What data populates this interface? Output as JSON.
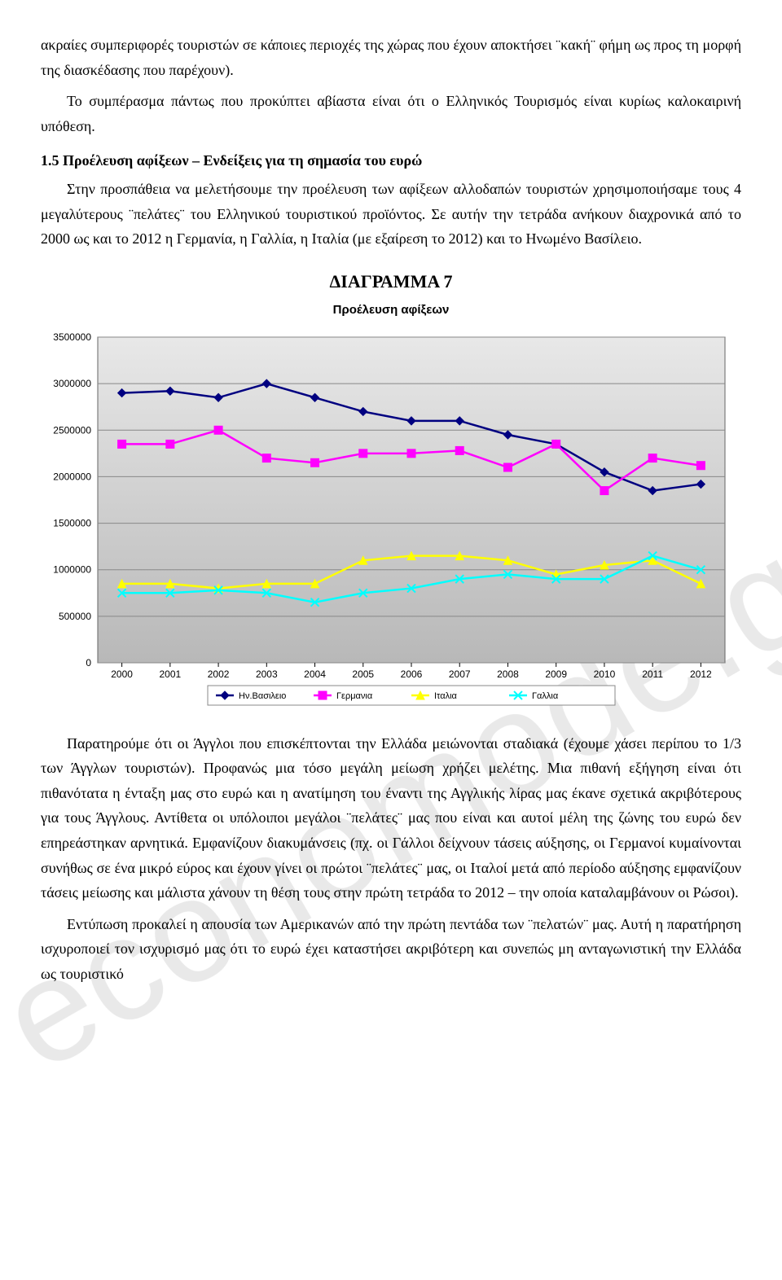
{
  "watermark": "economode.gr",
  "paragraphs": {
    "p1": "ακραίες συμπεριφορές τουριστών σε κάποιες περιοχές της χώρας που έχουν αποκτήσει ¨κακή¨ φήμη ως προς τη μορφή της διασκέδασης που παρέχουν).",
    "p2": "Το συμπέρασμα πάντως που προκύπτει αβίαστα είναι ότι ο Ελληνικός Τουρισμός είναι κυρίως καλοκαιρινή υπόθεση.",
    "section_head": "1.5 Προέλευση αφίξεων – Ενδείξεις για τη σημασία του ευρώ",
    "p3": "Στην προσπάθεια να μελετήσουμε την προέλευση των αφίξεων αλλοδαπών τουριστών χρησιμοποιήσαμε τους 4 μεγαλύτερους ¨πελάτες¨ του Ελληνικού τουριστικού προϊόντος. Σε αυτήν την τετράδα ανήκουν διαχρονικά από το 2000 ως και το 2012 η Γερμανία, η Γαλλία, η Ιταλία (με εξαίρεση το 2012) και το Ηνωμένο Βασίλειο.",
    "chart_title": "ΔΙΑΓΡΑΜΜΑ 7",
    "chart_subtitle": "Προέλευση αφίξεων",
    "p4": "Παρατηρούμε ότι οι Άγγλοι που επισκέπτονται την Ελλάδα μειώνονται σταδιακά (έχουμε χάσει περίπου το 1/3 των Άγγλων τουριστών). Προφανώς μια τόσο μεγάλη μείωση χρήζει μελέτης. Μια πιθανή εξήγηση είναι ότι πιθανότατα η ένταξη μας στο ευρώ και η ανατίμηση του έναντι της Αγγλικής λίρας μας έκανε σχετικά ακριβότερους για τους Άγγλους. Αντίθετα οι υπόλοιποι μεγάλοι ¨πελάτες¨ μας που είναι και αυτοί μέλη της ζώνης του ευρώ δεν επηρεάστηκαν αρνητικά. Εμφανίζουν διακυμάνσεις (πχ. οι Γάλλοι δείχνουν τάσεις αύξησης, οι Γερμανοί κυμαίνονται συνήθως σε ένα μικρό εύρος  και έχουν γίνει οι πρώτοι ¨πελάτες¨ μας, οι Ιταλοί μετά από περίοδο αύξησης εμφανίζουν τάσεις μείωσης και μάλιστα χάνουν τη θέση τους στην πρώτη τετράδα το 2012 – την οποία καταλαμβάνουν οι Ρώσοι).",
    "p5": "Εντύπωση προκαλεί η απουσία των Αμερικανών από την πρώτη πεντάδα των ¨πελατών¨ μας. Αυτή η παρατήρηση ισχυροποιεί τον ισχυρισμό μας ότι το ευρώ έχει καταστήσει ακριβότερη και συνεπώς μη ανταγωνιστική την Ελλάδα ως τουριστικό"
  },
  "chart": {
    "type": "line",
    "categories": [
      "2000",
      "2001",
      "2002",
      "2003",
      "2004",
      "2005",
      "2006",
      "2007",
      "2008",
      "2009",
      "2010",
      "2011",
      "2012"
    ],
    "ylim": [
      0,
      3500000
    ],
    "ytick_step": 500000,
    "yticks_labels": [
      "0",
      "500000",
      "1000000",
      "1500000",
      "2000000",
      "2500000",
      "3000000",
      "3500000"
    ],
    "series": [
      {
        "name": "Ην.Βασιλειο",
        "color": "#000080",
        "marker": "diamond",
        "values": [
          2900000,
          2920000,
          2850000,
          3000000,
          2850000,
          2700000,
          2600000,
          2600000,
          2450000,
          2350000,
          2050000,
          1850000,
          1920000
        ]
      },
      {
        "name": "Γερμανια",
        "color": "#ff00ff",
        "marker": "square",
        "values": [
          2350000,
          2350000,
          2500000,
          2200000,
          2150000,
          2250000,
          2250000,
          2280000,
          2100000,
          2350000,
          1850000,
          2200000,
          2120000
        ]
      },
      {
        "name": "Ιταλια",
        "color": "#ffff00",
        "marker": "triangle",
        "values": [
          850000,
          850000,
          800000,
          850000,
          850000,
          1100000,
          1150000,
          1150000,
          1100000,
          950000,
          1050000,
          1100000,
          850000
        ]
      },
      {
        "name": "Γαλλια",
        "color": "#00ffff",
        "marker": "x",
        "values": [
          750000,
          750000,
          780000,
          750000,
          650000,
          750000,
          800000,
          900000,
          950000,
          900000,
          900000,
          1150000,
          1000000
        ]
      }
    ],
    "background_color": "#c0c0c0",
    "plot_gradient_top": "#e8e8e8",
    "plot_gradient_bottom": "#b8b8b8",
    "grid_color": "#888888",
    "axis_fontsize": 12,
    "legend_fontsize": 11,
    "legend_bg": "#ffffff"
  }
}
